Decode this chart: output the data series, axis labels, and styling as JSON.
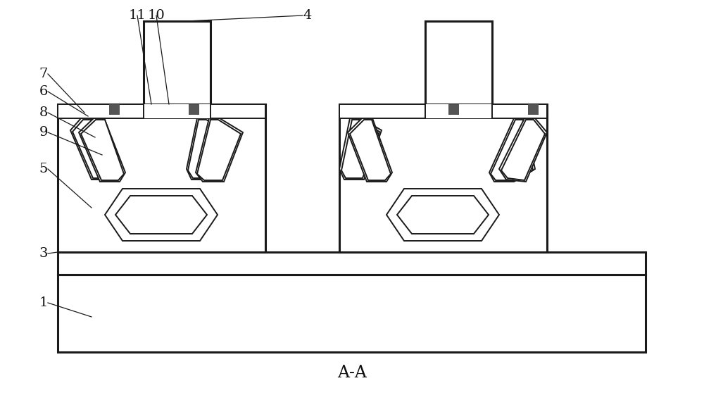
{
  "bg_color": "#ffffff",
  "lc": "#1a1a1a",
  "lw": 1.4,
  "tlw": 2.2,
  "fig_width": 10.0,
  "fig_height": 5.78,
  "aa_label": "A-A"
}
